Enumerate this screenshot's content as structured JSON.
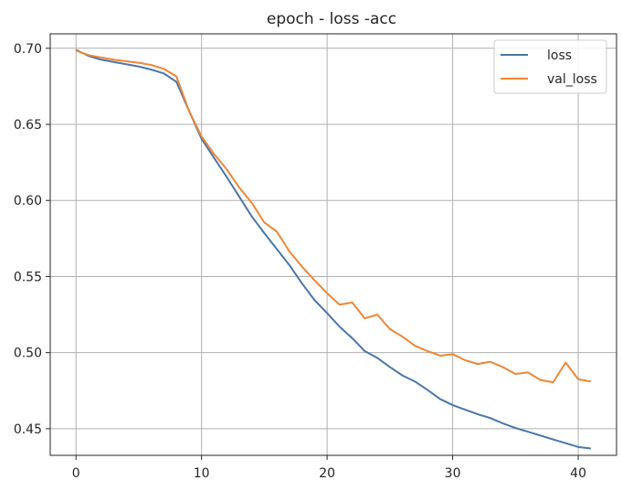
{
  "chart_data": {
    "type": "line",
    "title": "epoch - loss -acc",
    "xlabel": "",
    "ylabel": "",
    "xlim": [
      -2.05,
      43.05
    ],
    "ylim": [
      0.4325,
      0.7095
    ],
    "x_ticks": [
      0,
      10,
      20,
      30,
      40
    ],
    "y_ticks": [
      0.45,
      0.5,
      0.55,
      0.6,
      0.65,
      0.7
    ],
    "y_tick_labels": [
      "0.45",
      "0.50",
      "0.55",
      "0.60",
      "0.65",
      "0.70"
    ],
    "grid": true,
    "legend_position": "top-right",
    "x": [
      0,
      1,
      2,
      3,
      4,
      5,
      6,
      7,
      8,
      9,
      10,
      11,
      12,
      13,
      14,
      15,
      16,
      17,
      18,
      19,
      20,
      21,
      22,
      23,
      24,
      25,
      26,
      27,
      28,
      29,
      30,
      31,
      32,
      33,
      34,
      35,
      36,
      37,
      38,
      39,
      40,
      41
    ],
    "series": [
      {
        "name": "loss",
        "color": "#4a76a8",
        "values": [
          0.699,
          0.695,
          0.6925,
          0.691,
          0.6895,
          0.688,
          0.686,
          0.6835,
          0.678,
          0.659,
          0.6405,
          0.628,
          0.6155,
          0.6025,
          0.5895,
          0.5785,
          0.568,
          0.5575,
          0.5455,
          0.5345,
          0.526,
          0.517,
          0.5095,
          0.501,
          0.4965,
          0.4905,
          0.485,
          0.481,
          0.4755,
          0.4695,
          0.4655,
          0.4625,
          0.4595,
          0.457,
          0.4535,
          0.4505,
          0.448,
          0.4455,
          0.443,
          0.4405,
          0.438,
          0.437
        ]
      },
      {
        "name": "val_loss",
        "color": "#ef8636",
        "values": [
          0.6985,
          0.6955,
          0.694,
          0.6925,
          0.6915,
          0.6905,
          0.689,
          0.6865,
          0.6815,
          0.659,
          0.642,
          0.6305,
          0.6205,
          0.6085,
          0.5985,
          0.5855,
          0.5795,
          0.5665,
          0.5565,
          0.5475,
          0.539,
          0.5315,
          0.533,
          0.5225,
          0.525,
          0.5155,
          0.5105,
          0.5045,
          0.501,
          0.498,
          0.499,
          0.495,
          0.4925,
          0.494,
          0.4905,
          0.486,
          0.487,
          0.482,
          0.4805,
          0.4935,
          0.4825,
          0.481
        ]
      }
    ]
  }
}
